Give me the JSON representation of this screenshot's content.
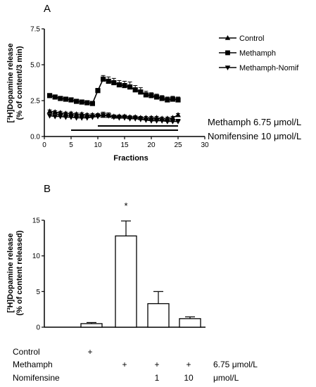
{
  "chart_data": [
    {
      "panel_label": "A",
      "type": "line",
      "xlabel": "Fractions",
      "ylabel_line1": "[³H]Dopamine release",
      "ylabel_line2": "(% of content/3 min)",
      "xlim": [
        0,
        30
      ],
      "ylim": [
        0,
        7.5
      ],
      "x_ticks": [
        "0",
        "5",
        "10",
        "15",
        "20",
        "25",
        "30"
      ],
      "y_ticks": [
        "0.0",
        "2.5",
        "5.0",
        "7.5"
      ],
      "legend_position": "right",
      "series": [
        {
          "name": "Control",
          "marker": "triangle-up",
          "x": [
            1,
            2,
            3,
            4,
            5,
            6,
            7,
            8,
            9,
            10,
            11,
            12,
            13,
            14,
            15,
            16,
            17,
            18,
            19,
            20,
            21,
            22,
            23,
            24,
            25
          ],
          "y": [
            1.75,
            1.7,
            1.65,
            1.6,
            1.6,
            1.55,
            1.55,
            1.5,
            1.5,
            1.5,
            1.45,
            1.45,
            1.4,
            1.4,
            1.4,
            1.35,
            1.35,
            1.3,
            1.3,
            1.3,
            1.3,
            1.25,
            1.25,
            1.3,
            1.5
          ],
          "err": [
            0.1,
            0.1,
            0.1,
            0.1,
            0.1,
            0.1,
            0.1,
            0.1,
            0.1,
            0.1,
            0.1,
            0.1,
            0.1,
            0.1,
            0.1,
            0.1,
            0.1,
            0.1,
            0.1,
            0.1,
            0.1,
            0.1,
            0.1,
            0.1,
            0.1
          ]
        },
        {
          "name": "Methamph",
          "marker": "square",
          "x": [
            1,
            2,
            3,
            4,
            5,
            6,
            7,
            8,
            9,
            10,
            11,
            12,
            13,
            14,
            15,
            16,
            17,
            18,
            19,
            20,
            21,
            22,
            23,
            24,
            25
          ],
          "y": [
            2.85,
            2.75,
            2.65,
            2.6,
            2.55,
            2.45,
            2.4,
            2.35,
            2.3,
            3.2,
            4.0,
            3.85,
            3.75,
            3.6,
            3.55,
            3.45,
            3.25,
            3.1,
            2.9,
            2.85,
            2.75,
            2.65,
            2.55,
            2.6,
            2.55
          ],
          "err": [
            0.1,
            0.1,
            0.1,
            0.1,
            0.1,
            0.1,
            0.1,
            0.1,
            0.1,
            0.15,
            0.25,
            0.3,
            0.3,
            0.3,
            0.3,
            0.35,
            0.3,
            0.3,
            0.25,
            0.2,
            0.2,
            0.2,
            0.2,
            0.2,
            0.2
          ]
        },
        {
          "name": "Methamph-Nomif",
          "marker": "triangle-down",
          "x": [
            1,
            2,
            3,
            4,
            5,
            6,
            7,
            8,
            9,
            10,
            11,
            12,
            13,
            14,
            15,
            16,
            17,
            18,
            19,
            20,
            21,
            22,
            23,
            24,
            25
          ],
          "y": [
            1.45,
            1.4,
            1.4,
            1.35,
            1.35,
            1.3,
            1.3,
            1.3,
            1.35,
            1.4,
            1.5,
            1.45,
            1.35,
            1.3,
            1.3,
            1.25,
            1.25,
            1.2,
            1.15,
            1.1,
            1.1,
            1.1,
            1.05,
            1.05,
            1.05
          ],
          "err": [
            0.1,
            0.1,
            0.1,
            0.1,
            0.1,
            0.1,
            0.1,
            0.1,
            0.1,
            0.15,
            0.2,
            0.2,
            0.15,
            0.15,
            0.15,
            0.15,
            0.15,
            0.15,
            0.15,
            0.15,
            0.15,
            0.15,
            0.15,
            0.15,
            0.15
          ]
        }
      ],
      "treatment_bars": [
        {
          "label": "Methamph 6.75 μmol/L",
          "x_start": 10,
          "x_end": 25
        },
        {
          "label": "Nomifensine 10 μmol/L",
          "x_start": 5,
          "x_end": 25
        }
      ]
    },
    {
      "panel_label": "B",
      "type": "bar",
      "ylabel_line1": "[³H]Dopamine release",
      "ylabel_line2": "(% of content released)",
      "ylim": [
        0,
        15
      ],
      "y_ticks": [
        "0",
        "5",
        "10",
        "15"
      ],
      "categories": [
        "Control",
        "Methamph",
        "Methamph + Nomifensine 1",
        "Methamph + Nomifensine 10"
      ],
      "values": [
        0.5,
        12.8,
        3.3,
        1.2
      ],
      "errors": [
        0.15,
        2.1,
        1.7,
        0.25
      ],
      "significance": [
        null,
        "*",
        null,
        null
      ],
      "condition_table": {
        "row_labels": [
          "Control",
          "Methamph",
          "Nomifensine"
        ],
        "cells": [
          [
            "+",
            "",
            "",
            ""
          ],
          [
            "",
            "+",
            "+",
            "+"
          ],
          [
            "",
            "",
            "1",
            "10"
          ]
        ],
        "units": [
          "",
          "6.75 μmol/L",
          "μmol/L"
        ]
      }
    }
  ]
}
